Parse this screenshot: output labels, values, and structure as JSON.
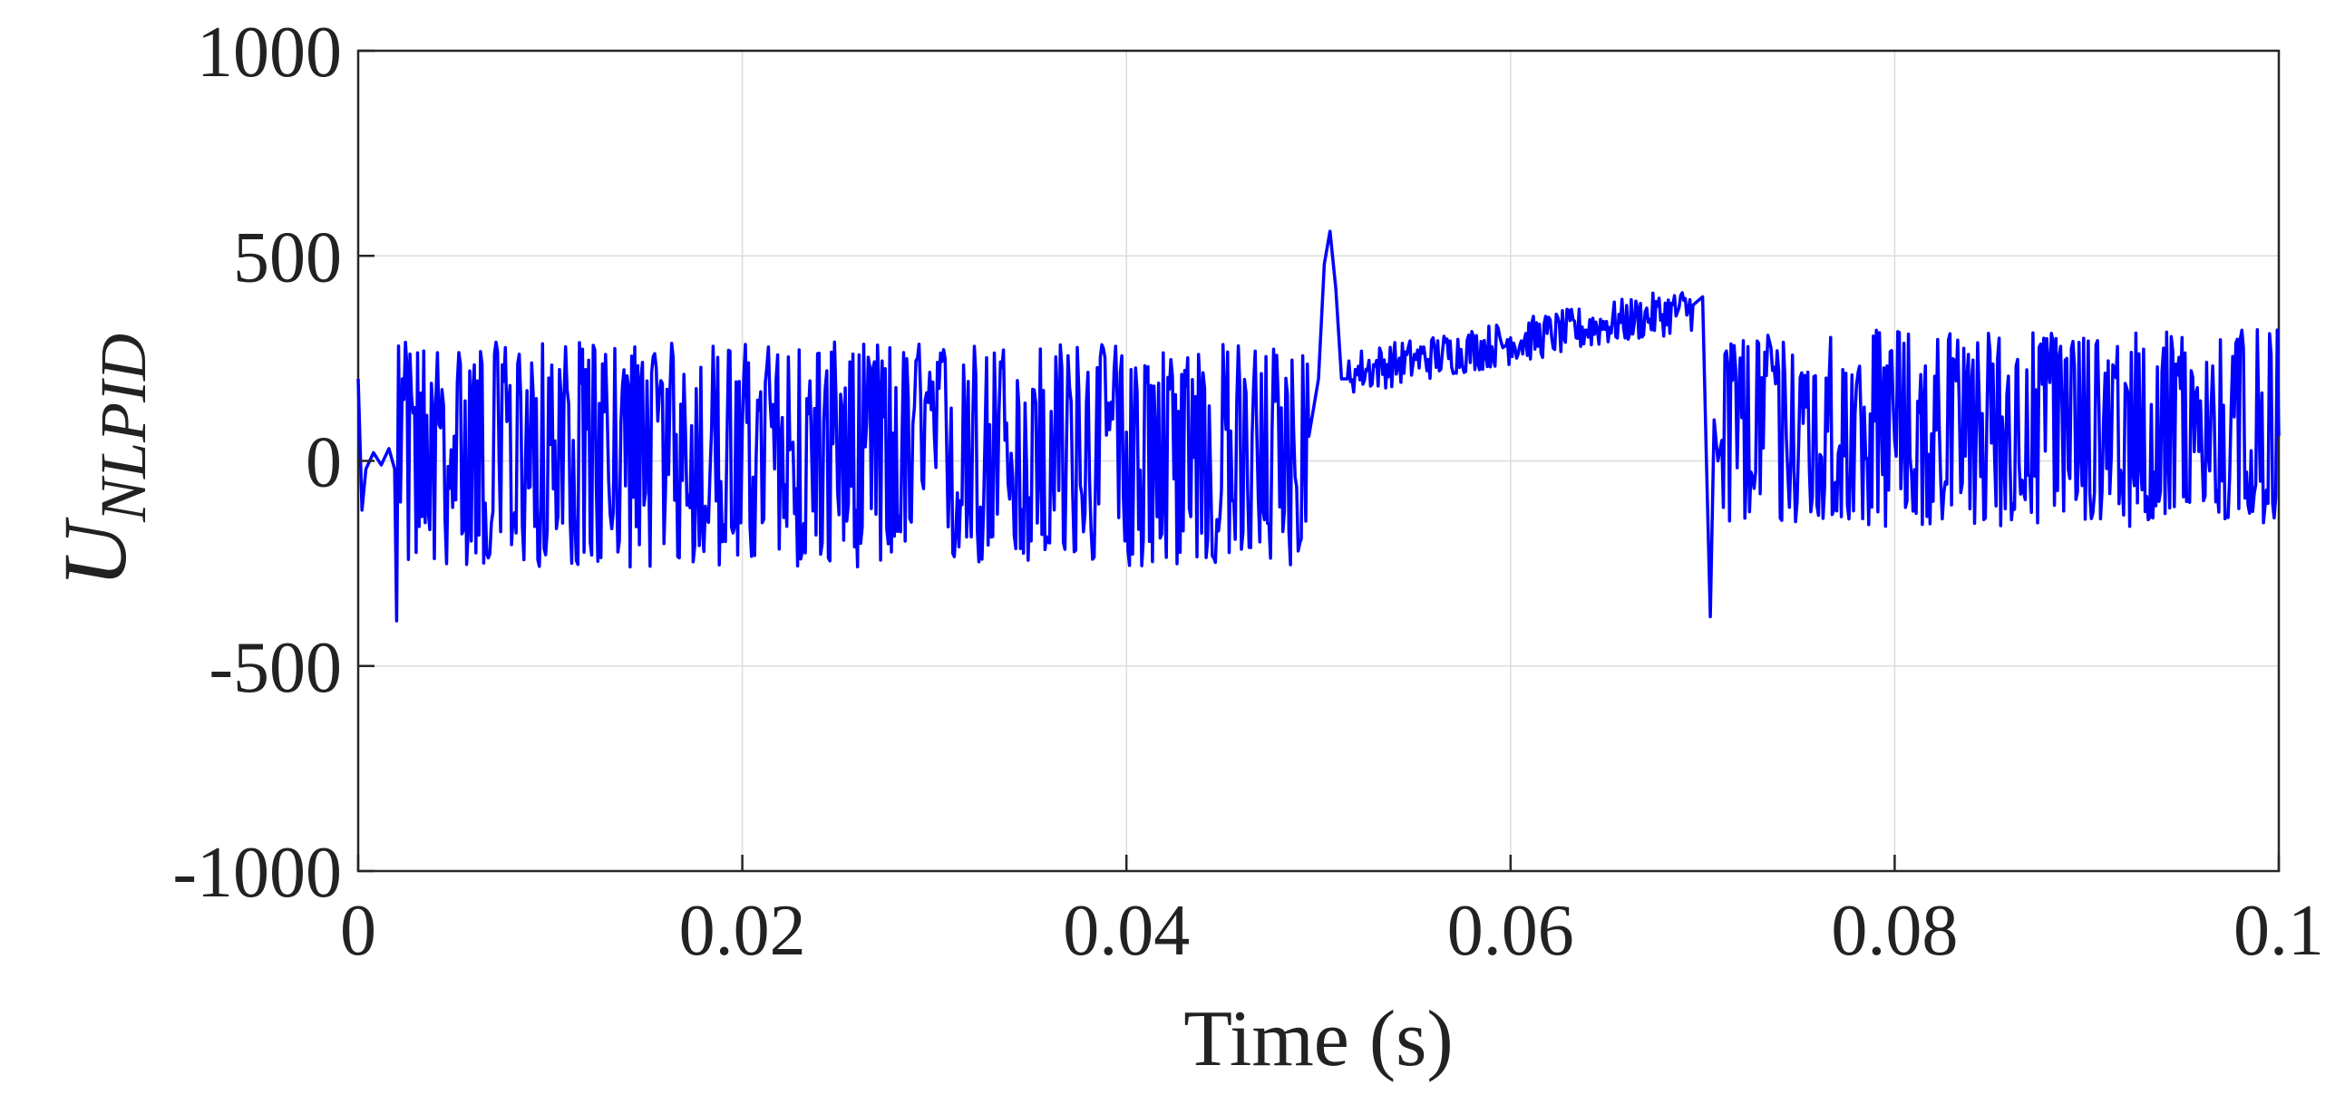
{
  "chart_data": {
    "type": "line",
    "title": "",
    "xlabel": "Time (s)",
    "ylabel": {
      "main": "U",
      "subscript": "NLPID"
    },
    "xlim": [
      0,
      0.1
    ],
    "ylim": [
      -1000,
      1000
    ],
    "xticks": [
      0,
      0.02,
      0.04,
      0.06,
      0.08,
      0.1
    ],
    "xtick_labels": [
      "0",
      "0.02",
      "0.04",
      "0.06",
      "0.08",
      "0.1"
    ],
    "yticks": [
      -1000,
      -500,
      0,
      500,
      1000
    ],
    "ytick_labels": [
      "-1000",
      "-500",
      "0",
      "500",
      "1000"
    ],
    "grid": true,
    "legend": "none",
    "series": [
      {
        "color": "#0000ff",
        "x": [
          0,
          0.0002,
          0.0004,
          0.0008,
          0.0012,
          0.0016,
          0.0019,
          0.002,
          0.0021,
          0.0022,
          0.0023,
          0.005,
          0.01,
          0.02,
          0.03,
          0.04,
          0.0495,
          0.05,
          0.0503,
          0.0506,
          0.0509,
          0.0512,
          0.0515,
          0.052,
          0.055,
          0.06,
          0.065,
          0.0695,
          0.07,
          0.0702,
          0.0704,
          0.0706,
          0.0708,
          0.071,
          0.075,
          0.08,
          0.09,
          0.1
        ],
        "y": [
          200,
          -120,
          -20,
          20,
          -10,
          30,
          -20,
          -390,
          280,
          -100,
          200,
          60,
          40,
          80,
          60,
          70,
          60,
          200,
          480,
          560,
          420,
          200,
          200,
          210,
          260,
          300,
          340,
          380,
          400,
          0,
          -380,
          100,
          0,
          50,
          40,
          50,
          60,
          60
        ]
      }
    ],
    "noise_bands": [
      {
        "x_start": 0.0023,
        "x_end": 0.0495,
        "y_min": -250,
        "y_max": 300
      },
      {
        "x_start": 0.0515,
        "x_end": 0.0698,
        "y_min": 180,
        "y_max": 420
      },
      {
        "x_start": 0.071,
        "x_end": 0.1,
        "y_min": -150,
        "y_max": 330
      }
    ]
  }
}
